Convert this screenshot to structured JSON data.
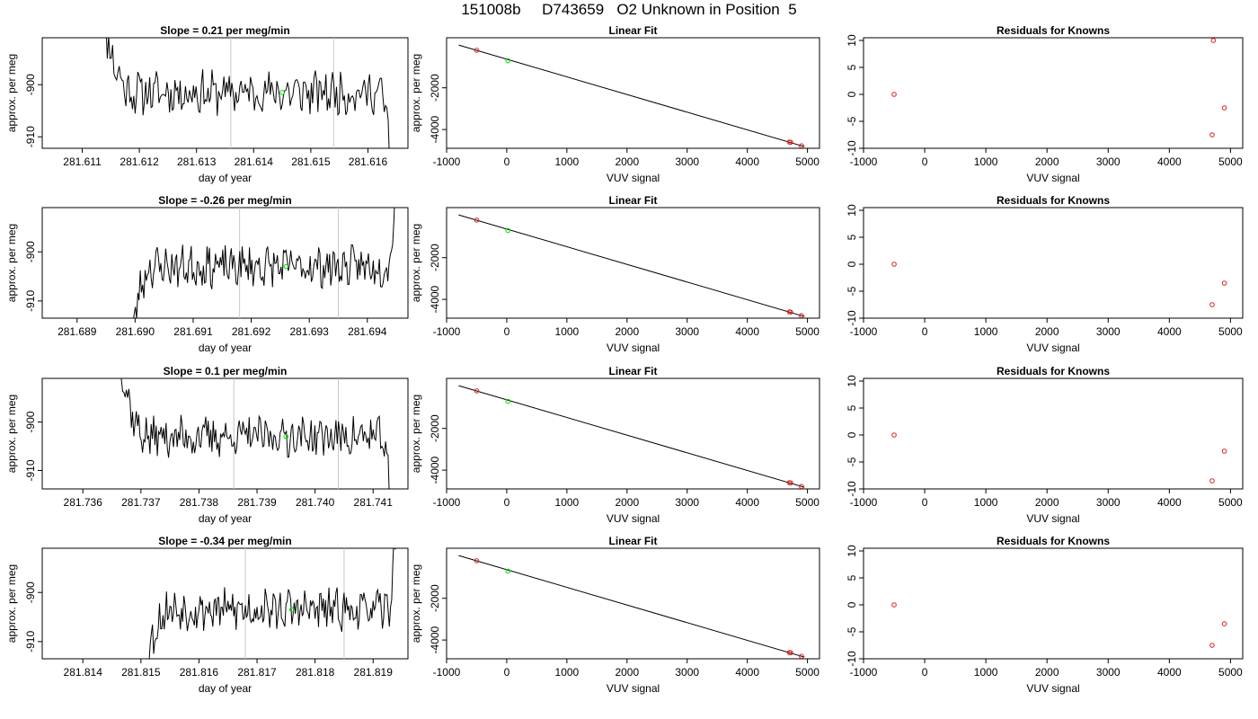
{
  "page": {
    "title": "151008b     D743659   O2 Unknown in Position  5"
  },
  "chart_data": [
    {
      "type": "line",
      "panel": "time",
      "row": 0,
      "title": "Slope =  0.21  per meg/min",
      "xlabel": "day of year",
      "ylabel": "approx. per meg",
      "xlim": [
        281.6103,
        281.6167
      ],
      "ylim": [
        -912.2,
        -891.0
      ],
      "xticks": [
        "281.611",
        "281.612",
        "281.613",
        "281.614",
        "281.615",
        "281.616"
      ],
      "xtick_values": [
        281.611,
        281.612,
        281.613,
        281.614,
        281.615,
        281.616
      ],
      "yticks": [
        "-900",
        "-910"
      ],
      "ytick_values": [
        -900,
        -910
      ],
      "series_start": 281.6113,
      "series_end": 281.6164,
      "series_base": -901.5,
      "entry_start": -884,
      "exit_end": -916,
      "ramp_end": 281.6119,
      "vlines": [
        281.6136,
        281.6154
      ],
      "marker": {
        "x": 281.6145,
        "y": -901.5
      },
      "seed": 11
    },
    {
      "type": "scatter",
      "panel": "fit",
      "row": 0,
      "title": "Linear Fit",
      "xlabel": "VUV signal",
      "ylabel": "approx. per meg",
      "xlim": [
        -1000,
        5200
      ],
      "ylim": [
        -4900,
        400
      ],
      "xticks": [
        "-1000",
        "0",
        "1000",
        "2000",
        "3000",
        "4000",
        "5000"
      ],
      "xtick_values": [
        -1000,
        0,
        1000,
        2000,
        3000,
        4000,
        5000
      ],
      "yticks": [
        "-2000",
        "-4000"
      ],
      "ytick_values": [
        -2000,
        -4000
      ],
      "knowns": {
        "x": [
          -500,
          4700,
          4720,
          4900
        ],
        "y": [
          -200,
          -4600,
          -4610,
          -4780
        ]
      },
      "unknown": {
        "x": 20,
        "y": -700
      },
      "fit_line": {
        "x": [
          -800,
          4950
        ],
        "y": [
          50,
          -4820
        ]
      }
    },
    {
      "type": "scatter",
      "panel": "residuals",
      "row": 0,
      "title": "Residuals for Knowns",
      "xlabel": "VUV signal",
      "xlim": [
        -1000,
        5200
      ],
      "ylim": [
        -10,
        10.5
      ],
      "xticks": [
        "-1000",
        "0",
        "1000",
        "2000",
        "3000",
        "4000",
        "5000"
      ],
      "xtick_values": [
        -1000,
        0,
        1000,
        2000,
        3000,
        4000,
        5000
      ],
      "yticks": [
        "-10",
        "-5",
        "0",
        "5",
        "10"
      ],
      "ytick_values": [
        -10,
        -5,
        0,
        5,
        10
      ],
      "x": [
        -500,
        4700,
        4720,
        4900
      ],
      "y": [
        0,
        -7.5,
        10,
        -2.5
      ]
    },
    {
      "type": "line",
      "panel": "time",
      "row": 1,
      "title": "Slope =  -0.26  per meg/min",
      "xlabel": "day of year",
      "ylabel": "approx. per meg",
      "xlim": [
        281.6884,
        281.6947
      ],
      "ylim": [
        -913.5,
        -891.0
      ],
      "xticks": [
        "281.689",
        "281.690",
        "281.691",
        "281.692",
        "281.693",
        "281.694"
      ],
      "xtick_values": [
        281.689,
        281.69,
        281.691,
        281.692,
        281.693,
        281.694
      ],
      "yticks": [
        "-900",
        "-910"
      ],
      "ytick_values": [
        -900,
        -910
      ],
      "series_start": 281.6899,
      "series_end": 281.6945,
      "series_base": -903.0,
      "entry_start": -920,
      "exit_end": -884,
      "ramp_end": 281.6903,
      "vlines": [
        281.6918,
        281.6935
      ],
      "marker": {
        "x": 281.6926,
        "y": -903.0
      },
      "seed": 23
    },
    {
      "type": "scatter",
      "panel": "fit",
      "row": 1,
      "title": "Linear Fit",
      "xlabel": "VUV signal",
      "ylabel": "approx. per meg",
      "xlim": [
        -1000,
        5200
      ],
      "ylim": [
        -4900,
        400
      ],
      "xticks": [
        "-1000",
        "0",
        "1000",
        "2000",
        "3000",
        "4000",
        "5000"
      ],
      "xtick_values": [
        -1000,
        0,
        1000,
        2000,
        3000,
        4000,
        5000
      ],
      "yticks": [
        "-2000",
        "-4000"
      ],
      "ytick_values": [
        -2000,
        -4000
      ],
      "knowns": {
        "x": [
          -500,
          4700,
          4720,
          4900
        ],
        "y": [
          -200,
          -4600,
          -4610,
          -4780
        ]
      },
      "unknown": {
        "x": 20,
        "y": -700
      },
      "fit_line": {
        "x": [
          -800,
          4950
        ],
        "y": [
          50,
          -4820
        ]
      }
    },
    {
      "type": "scatter",
      "panel": "residuals",
      "row": 1,
      "title": "Residuals for Knowns",
      "xlabel": "VUV signal",
      "xlim": [
        -1000,
        5200
      ],
      "ylim": [
        -10,
        10.5
      ],
      "xticks": [
        "-1000",
        "0",
        "1000",
        "2000",
        "3000",
        "4000",
        "5000"
      ],
      "xtick_values": [
        -1000,
        0,
        1000,
        2000,
        3000,
        4000,
        5000
      ],
      "yticks": [
        "-10",
        "-5",
        "0",
        "5",
        "10"
      ],
      "ytick_values": [
        -10,
        -5,
        0,
        5,
        10
      ],
      "x": [
        -500,
        4700,
        4900
      ],
      "y": [
        0,
        -7.5,
        -3.5
      ]
    },
    {
      "type": "line",
      "panel": "time",
      "row": 2,
      "title": "Slope =  0.1  per meg/min",
      "xlabel": "day of year",
      "ylabel": "approx. per meg",
      "xlim": [
        281.7353,
        281.7416
      ],
      "ylim": [
        -913.8,
        -891.0
      ],
      "xticks": [
        "281.736",
        "281.737",
        "281.738",
        "281.739",
        "281.740",
        "281.741"
      ],
      "xtick_values": [
        281.736,
        281.737,
        281.738,
        281.739,
        281.74,
        281.741
      ],
      "yticks": [
        "-900",
        "-910"
      ],
      "ytick_values": [
        -900,
        -910
      ],
      "series_start": 281.7366,
      "series_end": 281.7413,
      "series_base": -903.0,
      "entry_start": -884,
      "exit_end": -918,
      "ramp_end": 281.7371,
      "vlines": [
        281.7386,
        281.7404
      ],
      "marker": {
        "x": 281.7395,
        "y": -903.0
      },
      "seed": 37
    },
    {
      "type": "scatter",
      "panel": "fit",
      "row": 2,
      "title": "Linear Fit",
      "xlabel": "VUV signal",
      "ylabel": "approx. per meg",
      "xlim": [
        -1000,
        5200
      ],
      "ylim": [
        -4900,
        400
      ],
      "xticks": [
        "-1000",
        "0",
        "1000",
        "2000",
        "3000",
        "4000",
        "5000"
      ],
      "xtick_values": [
        -1000,
        0,
        1000,
        2000,
        3000,
        4000,
        5000
      ],
      "yticks": [
        "-2000",
        "-4000"
      ],
      "ytick_values": [
        -2000,
        -4000
      ],
      "knowns": {
        "x": [
          -500,
          4700,
          4720,
          4900
        ],
        "y": [
          -200,
          -4600,
          -4610,
          -4780
        ]
      },
      "unknown": {
        "x": 20,
        "y": -700
      },
      "fit_line": {
        "x": [
          -800,
          4950
        ],
        "y": [
          50,
          -4820
        ]
      }
    },
    {
      "type": "scatter",
      "panel": "residuals",
      "row": 2,
      "title": "Residuals for Knowns",
      "xlabel": "VUV signal",
      "xlim": [
        -1000,
        5200
      ],
      "ylim": [
        -10,
        10.5
      ],
      "xticks": [
        "-1000",
        "0",
        "1000",
        "2000",
        "3000",
        "4000",
        "5000"
      ],
      "xtick_values": [
        -1000,
        0,
        1000,
        2000,
        3000,
        4000,
        5000
      ],
      "yticks": [
        "-10",
        "-5",
        "0",
        "5",
        "10"
      ],
      "ytick_values": [
        -10,
        -5,
        0,
        5,
        10
      ],
      "x": [
        -500,
        4700,
        4900
      ],
      "y": [
        0,
        -8.5,
        -3
      ]
    },
    {
      "type": "line",
      "panel": "time",
      "row": 3,
      "title": "Slope =  -0.34  per meg/min",
      "xlabel": "day of year",
      "ylabel": "approx. per meg",
      "xlim": [
        281.8133,
        281.8196
      ],
      "ylim": [
        -913.5,
        -891.0
      ],
      "xticks": [
        "281.814",
        "281.815",
        "281.816",
        "281.817",
        "281.818",
        "281.819"
      ],
      "xtick_values": [
        281.814,
        281.815,
        281.816,
        281.817,
        281.818,
        281.819
      ],
      "yticks": [
        "-900",
        "-910"
      ],
      "ytick_values": [
        -900,
        -910
      ],
      "series_start": 281.815,
      "series_end": 281.8194,
      "series_base": -903.5,
      "entry_start": -920,
      "exit_end": -884,
      "ramp_end": 281.8155,
      "vlines": [
        281.8168,
        281.8185
      ],
      "marker": {
        "x": 281.8176,
        "y": -903.5
      },
      "seed": 53
    },
    {
      "type": "scatter",
      "panel": "fit",
      "row": 3,
      "title": "Linear Fit",
      "xlabel": "VUV signal",
      "ylabel": "approx. per meg",
      "xlim": [
        -1000,
        5200
      ],
      "ylim": [
        -4900,
        400
      ],
      "xticks": [
        "-1000",
        "0",
        "1000",
        "2000",
        "3000",
        "4000",
        "5000"
      ],
      "xtick_values": [
        -1000,
        0,
        1000,
        2000,
        3000,
        4000,
        5000
      ],
      "yticks": [
        "-2000",
        "-4000"
      ],
      "ytick_values": [
        -2000,
        -4000
      ],
      "knowns": {
        "x": [
          -500,
          4700,
          4720,
          4900
        ],
        "y": [
          -200,
          -4600,
          -4610,
          -4780
        ]
      },
      "unknown": {
        "x": 20,
        "y": -700
      },
      "fit_line": {
        "x": [
          -800,
          4950
        ],
        "y": [
          50,
          -4820
        ]
      }
    },
    {
      "type": "scatter",
      "panel": "residuals",
      "row": 3,
      "title": "Residuals for Knowns",
      "xlabel": "VUV signal",
      "xlim": [
        -1000,
        5200
      ],
      "ylim": [
        -10,
        10.5
      ],
      "xticks": [
        "-1000",
        "0",
        "1000",
        "2000",
        "3000",
        "4000",
        "5000"
      ],
      "xtick_values": [
        -1000,
        0,
        1000,
        2000,
        3000,
        4000,
        5000
      ],
      "yticks": [
        "-10",
        "-5",
        "0",
        "5",
        "10"
      ],
      "ytick_values": [
        -10,
        -5,
        0,
        5,
        10
      ],
      "x": [
        -500,
        4700,
        4900
      ],
      "y": [
        0,
        -7.5,
        -3.5
      ]
    }
  ],
  "colors": {
    "series_line": "#000000",
    "vline": "#c8c8c8",
    "known_point": "#dd2020",
    "unknown_point": "#00dd00",
    "axis": "#000000"
  }
}
